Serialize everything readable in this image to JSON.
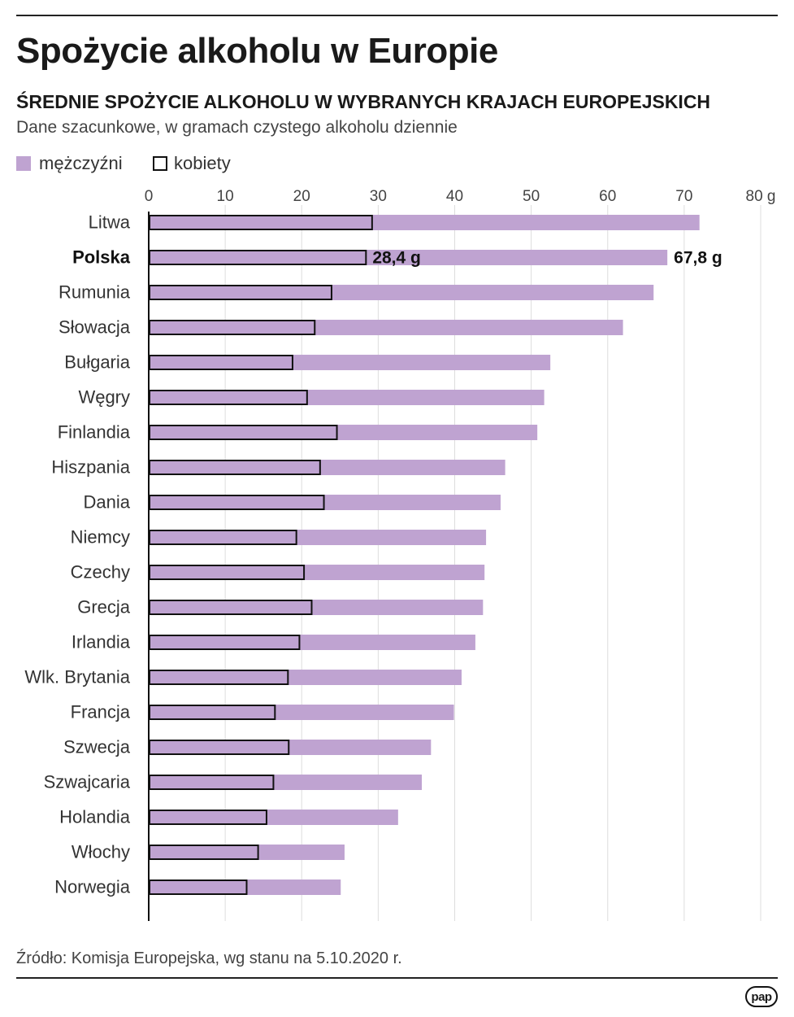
{
  "title": "Spożycie alkoholu w Europie",
  "subtitle": "ŚREDNIE SPOŻYCIE ALKOHOLU W WYBRANYCH KRAJACH EUROPEJSKICH",
  "description": "Dane szacunkowe, w gramach czystego alkoholu dziennie",
  "legend": {
    "men": "mężczyźni",
    "women": "kobiety"
  },
  "colors": {
    "men": "#bfa3d1",
    "women_outline": "#111111",
    "gridline": "#dddddd",
    "axis": "#111111"
  },
  "source": "Źródło: Komisja Europejska, wg stanu na 5.10.2020 r.",
  "logo": "pap",
  "chart_data": {
    "type": "bar",
    "orientation": "horizontal",
    "title": "Spożycie alkoholu w Europie",
    "xlim": [
      0,
      80
    ],
    "x_ticks": [
      "0",
      "10",
      "20",
      "30",
      "40",
      "50",
      "60",
      "70",
      "80 g"
    ],
    "grid": true,
    "legend_placement": "top-left",
    "categories": [
      "Litwa",
      "Polska",
      "Rumunia",
      "Słowacja",
      "Bułgaria",
      "Węgry",
      "Finlandia",
      "Hiszpania",
      "Dania",
      "Niemcy",
      "Czechy",
      "Grecja",
      "Irlandia",
      "Wlk. Brytania",
      "Francja",
      "Szwecja",
      "Szwajcaria",
      "Holandia",
      "Włochy",
      "Norwegia"
    ],
    "highlight_category": "Polska",
    "series": [
      {
        "name": "mężczyźni",
        "values": [
          72.0,
          67.8,
          66.0,
          62.0,
          52.5,
          51.7,
          50.8,
          46.6,
          46.0,
          44.1,
          43.9,
          43.7,
          42.7,
          40.9,
          39.9,
          36.9,
          35.7,
          32.6,
          25.6,
          25.1
        ]
      },
      {
        "name": "kobiety",
        "values": [
          29.2,
          28.4,
          23.9,
          21.7,
          18.8,
          20.7,
          24.6,
          22.4,
          22.9,
          19.3,
          20.3,
          21.3,
          19.7,
          18.2,
          16.5,
          18.3,
          16.3,
          15.4,
          14.3,
          12.8
        ]
      }
    ],
    "annotations": [
      {
        "category": "Polska",
        "series": "kobiety",
        "text": "28,4 g"
      },
      {
        "category": "Polska",
        "series": "mężczyźni",
        "text": "67,8 g"
      }
    ]
  }
}
